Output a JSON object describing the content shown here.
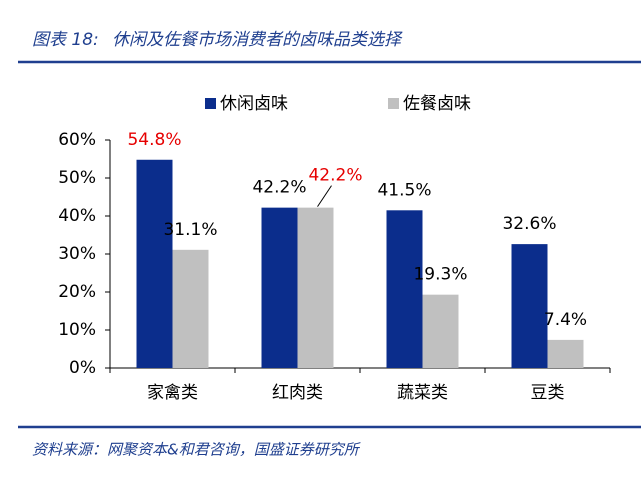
{
  "chart_data": {
    "type": "bar",
    "title_prefix": "图表 18:",
    "title": "休闲及佐餐市场消费者的卤味品类选择",
    "source": "资料来源：网聚资本&和君咨询，国盛证券研究所",
    "categories": [
      "家禽类",
      "红肉类",
      "蔬菜类",
      "豆类"
    ],
    "series": [
      {
        "name": "休闲卤味",
        "color": "#0b2d8c",
        "values": [
          54.8,
          42.2,
          41.5,
          32.6
        ],
        "value_labels": [
          "54.8%",
          "42.2%",
          "41.5%",
          "32.6%"
        ],
        "value_label_colors": [
          "#e60000",
          "#000000",
          "#000000",
          "#000000"
        ]
      },
      {
        "name": "佐餐卤味",
        "color": "#c0c0c0",
        "values": [
          31.1,
          42.2,
          19.3,
          7.4
        ],
        "value_labels": [
          "31.1%",
          "42.2%",
          "19.3%",
          "7.4%"
        ],
        "value_label_colors": [
          "#000000",
          "#e60000",
          "#000000",
          "#000000"
        ]
      }
    ],
    "ylim": [
      0,
      60
    ],
    "yticks": [
      {
        "value": 0,
        "label": "0%"
      },
      {
        "value": 10,
        "label": "10%"
      },
      {
        "value": 20,
        "label": "20%"
      },
      {
        "value": 30,
        "label": "30%"
      },
      {
        "value": 40,
        "label": "40%"
      },
      {
        "value": 50,
        "label": "50%"
      },
      {
        "value": 60,
        "label": "60%"
      }
    ],
    "grid": false,
    "legend": "top"
  }
}
